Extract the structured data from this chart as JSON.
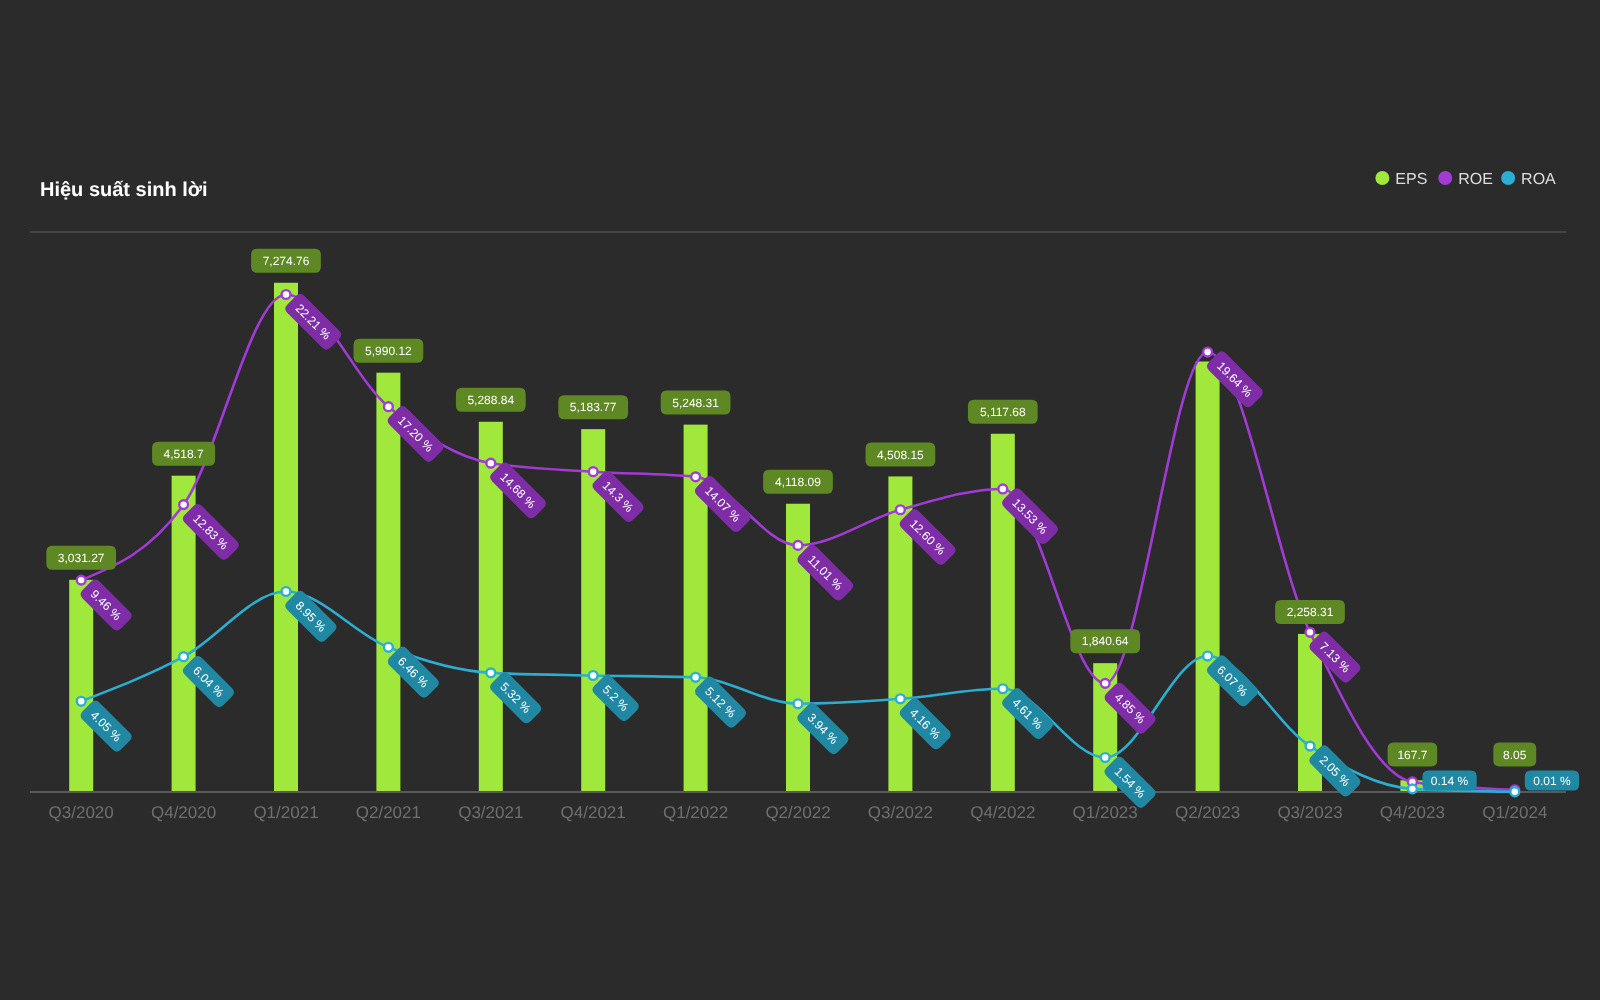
{
  "chart_data": {
    "type": "bar",
    "title": "Hiệu suất sinh lời",
    "categories": [
      "Q3/2020",
      "Q4/2020",
      "Q1/2021",
      "Q2/2021",
      "Q3/2021",
      "Q4/2021",
      "Q1/2022",
      "Q2/2022",
      "Q3/2022",
      "Q4/2022",
      "Q1/2023",
      "Q2/2023",
      "Q3/2023",
      "Q4/2023",
      "Q1/2024"
    ],
    "series": [
      {
        "name": "EPS",
        "color": "#a0e83c",
        "values": [
          3031.27,
          4518.7,
          7274.76,
          5990.12,
          5288.84,
          5183.77,
          5248.31,
          4118.09,
          4508.15,
          5117.68,
          1840.64,
          6150,
          2258.31,
          167.7,
          8.05
        ],
        "value_labels": [
          "3,031.27",
          "4,518.7",
          "7,274.76",
          "5,990.12",
          "5,288.84",
          "5,183.77",
          "5,248.31",
          "4,118.09",
          "4,508.15",
          "5,117.68",
          "1,840.64",
          null,
          "2,258.31",
          "167.7",
          "8.05"
        ]
      },
      {
        "name": "ROE",
        "type": "line",
        "axis": "y2",
        "color": "#a23ad6",
        "values": [
          9.46,
          12.83,
          22.21,
          17.2,
          14.68,
          14.3,
          14.07,
          11.01,
          12.6,
          13.53,
          4.85,
          19.64,
          7.13,
          0.45,
          0.1
        ],
        "value_labels": [
          "9.46 %",
          "12.83 %",
          "22.21 %",
          "17.20 %",
          "14.68 %",
          "14.3 %",
          "14.07 %",
          "11.01 %",
          "12.60 %",
          "13.53 %",
          "4.85 %",
          "19.64 %",
          "7.13 %",
          null,
          null
        ]
      },
      {
        "name": "ROA",
        "type": "line",
        "axis": "y2",
        "color": "#2aaed2",
        "values": [
          4.05,
          6.04,
          8.95,
          6.46,
          5.32,
          5.2,
          5.12,
          3.94,
          4.16,
          4.61,
          1.54,
          6.07,
          2.05,
          0.14,
          0.01
        ],
        "value_labels": [
          "4.05 %",
          "6.04 %",
          "8.95 %",
          "6.46 %",
          "5.32 %",
          "5.2 %",
          "5.12 %",
          "3.94 %",
          "4.16 %",
          "4.61 %",
          "1.54 %",
          "6.07 %",
          "2.05 %",
          "0.14 %",
          "0.01 %"
        ]
      }
    ],
    "ylim": [
      0,
      8000
    ],
    "y2lim": [
      0,
      25
    ],
    "tick_labels": "x",
    "legend": "top right",
    "marker": "circle"
  }
}
